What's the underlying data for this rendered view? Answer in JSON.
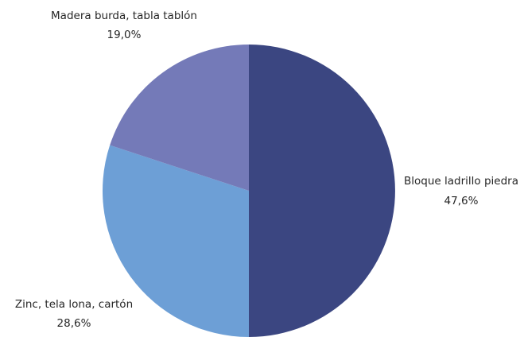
{
  "chart_data": {
    "type": "pie",
    "title": "",
    "slices": [
      {
        "label": "Bloque ladrillo piedra",
        "value": 47.6,
        "value_label": "47,6%",
        "color": "#3b4681"
      },
      {
        "label": "Zinc, tela lona, cartón",
        "value": 28.6,
        "value_label": "28,6%",
        "color": "#6d9fd6"
      },
      {
        "label": "Madera burda, tabla tablón",
        "value": 19.0,
        "value_label": "19,0%",
        "color": "#747ab8"
      }
    ],
    "start_angle": "12 o'clock",
    "direction": "clockwise",
    "legend": "none",
    "data_labels": "outside, category name and percentage"
  }
}
